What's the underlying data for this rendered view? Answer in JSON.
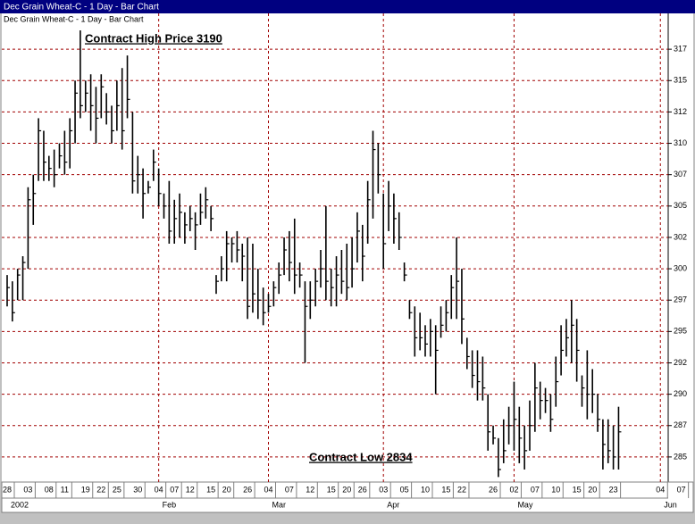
{
  "window_title": "Dec Grain Wheat-C - 1 Day - Bar Chart",
  "chart_data": {
    "type": "hlc",
    "title": "Dec Grain Wheat-C - 1 Day - Bar Chart",
    "annotations": [
      "Contract High Price 3190",
      "Contract Low 2834"
    ],
    "color": "#000000",
    "grid": true,
    "ylim": [
      2830,
      3200
    ],
    "yticks": [
      {
        "value": 3175,
        "label": "317"
      },
      {
        "value": 3150,
        "label": "315"
      },
      {
        "value": 3125,
        "label": "312"
      },
      {
        "value": 3100,
        "label": "310"
      },
      {
        "value": 3075,
        "label": "307"
      },
      {
        "value": 3050,
        "label": "305"
      },
      {
        "value": 3025,
        "label": "302"
      },
      {
        "value": 3000,
        "label": "300"
      },
      {
        "value": 2975,
        "label": "297"
      },
      {
        "value": 2950,
        "label": "295"
      },
      {
        "value": 2925,
        "label": "292"
      },
      {
        "value": 2900,
        "label": "290"
      },
      {
        "value": 2875,
        "label": "287"
      },
      {
        "value": 2850,
        "label": "285"
      }
    ],
    "categories": [
      "28",
      null,
      null,
      null,
      "03",
      null,
      null,
      null,
      "08",
      null,
      null,
      "11",
      null,
      null,
      null,
      "19",
      null,
      null,
      "22",
      null,
      null,
      "25",
      null,
      null,
      null,
      "30",
      null,
      null,
      null,
      "04",
      null,
      null,
      "07",
      null,
      null,
      "12",
      null,
      null,
      null,
      "15",
      null,
      null,
      "20",
      null,
      null,
      null,
      "26",
      null,
      null,
      null,
      "04",
      null,
      null,
      null,
      "07",
      null,
      null,
      null,
      "12",
      null,
      null,
      null,
      "15",
      null,
      null,
      "20",
      null,
      null,
      "26",
      null,
      null,
      null,
      "03",
      null,
      null,
      null,
      "05",
      null,
      null,
      null,
      "10",
      null,
      null,
      null,
      "15",
      null,
      null,
      "22",
      null,
      null,
      null,
      null,
      null,
      "26",
      null,
      null,
      null,
      "02",
      null,
      null,
      null,
      "07",
      null,
      null,
      null,
      "10",
      null,
      null,
      null,
      "15",
      null,
      null,
      "20",
      null,
      null,
      null,
      "23",
      null,
      null,
      null,
      null,
      null,
      null,
      null,
      null,
      "04",
      null,
      null,
      null,
      "07"
    ],
    "months": [
      "2002",
      null,
      null,
      null,
      null,
      null,
      null,
      null,
      null,
      null,
      null,
      null,
      null,
      null,
      null,
      null,
      null,
      null,
      null,
      null,
      null,
      null,
      null,
      null,
      null,
      null,
      null,
      null,
      null,
      "Feb",
      null,
      null,
      null,
      null,
      null,
      null,
      null,
      null,
      null,
      null,
      null,
      null,
      null,
      null,
      null,
      null,
      null,
      null,
      null,
      null,
      "Mar",
      null,
      null,
      null,
      null,
      null,
      null,
      null,
      null,
      null,
      null,
      null,
      null,
      null,
      null,
      null,
      null,
      null,
      null,
      null,
      null,
      null,
      "Apr",
      null,
      null,
      null,
      null,
      null,
      null,
      null,
      null,
      null,
      null,
      null,
      null,
      null,
      null,
      null,
      null,
      null,
      null,
      null,
      null,
      null,
      null,
      null,
      null,
      "May",
      null,
      null,
      null,
      null,
      null,
      null,
      null,
      null,
      null,
      null,
      null,
      null,
      null,
      null,
      null,
      null,
      null,
      null,
      null,
      null,
      null,
      null,
      null,
      null,
      null,
      null,
      null,
      "Jun",
      null,
      null,
      null,
      null
    ],
    "high": [
      2995,
      2990,
      3000,
      3010,
      3065,
      3075,
      3120,
      3110,
      3090,
      3095,
      3100,
      3110,
      3120,
      3150,
      3190,
      3150,
      3155,
      3145,
      3155,
      3140,
      3130,
      3150,
      3160,
      3170,
      3125,
      3090,
      3080,
      3070,
      3095,
      3080,
      3060,
      3070,
      3055,
      3060,
      3045,
      3050,
      3045,
      3060,
      3065,
      3050,
      2995,
      3010,
      3030,
      3025,
      3030,
      3020,
      3025,
      3020,
      3000,
      2985,
      2980,
      2990,
      3005,
      3025,
      3030,
      3040,
      3005,
      2990,
      2990,
      3000,
      3015,
      3050,
      3000,
      3010,
      3015,
      3020,
      3025,
      3045,
      3035,
      3070,
      3110,
      3100,
      3060,
      3070,
      3060,
      3045,
      3005,
      2975,
      2970,
      2965,
      2955,
      2960,
      2955,
      2970,
      2975,
      2995,
      3025,
      3000,
      2945,
      2935,
      2935,
      2930,
      2900,
      2875,
      2865,
      2880,
      2890,
      2910,
      2890,
      2875,
      2895,
      2925,
      2910,
      2905,
      2900,
      2930,
      2955,
      2960,
      2975,
      2960,
      2915,
      2935,
      2920,
      2900,
      2880,
      2880,
      2875,
      2890,
      null,
      null,
      null,
      null,
      null,
      null,
      null,
      null,
      null,
      null,
      null,
      null
    ],
    "low": [
      2970,
      2958,
      2975,
      2975,
      3000,
      3035,
      3070,
      3070,
      3070,
      3065,
      3080,
      3075,
      3080,
      3100,
      3120,
      3125,
      3110,
      3100,
      3120,
      3115,
      3100,
      3110,
      3095,
      3120,
      3060,
      3060,
      3040,
      3060,
      3070,
      3050,
      3040,
      3020,
      3020,
      3025,
      3020,
      3030,
      3015,
      3035,
      3040,
      3030,
      2980,
      2990,
      2990,
      3005,
      3005,
      2990,
      2960,
      2965,
      2960,
      2955,
      2965,
      2970,
      2980,
      2995,
      2990,
      2980,
      2985,
      2925,
      2960,
      2970,
      2985,
      2975,
      2970,
      2970,
      2980,
      2975,
      2985,
      3005,
      2990,
      3020,
      3040,
      3060,
      3000,
      3030,
      3020,
      3015,
      2990,
      2960,
      2930,
      2935,
      2930,
      2930,
      2900,
      2945,
      2950,
      2960,
      2960,
      2940,
      2920,
      2905,
      2895,
      2895,
      2855,
      2860,
      2834,
      2845,
      2860,
      2855,
      2845,
      2840,
      2855,
      2870,
      2880,
      2885,
      2870,
      2890,
      2915,
      2930,
      2925,
      2910,
      2890,
      2880,
      2885,
      2870,
      2840,
      2845,
      2840,
      2840,
      null,
      null,
      null,
      null,
      null,
      null,
      null,
      null,
      null,
      null,
      null,
      null
    ],
    "close": [
      2985,
      2965,
      2995,
      3005,
      3055,
      3060,
      3110,
      3085,
      3080,
      3075,
      3090,
      3085,
      3110,
      3140,
      3130,
      3140,
      3130,
      3120,
      3145,
      3125,
      3110,
      3130,
      3110,
      3135,
      3070,
      3075,
      3060,
      3065,
      3085,
      3060,
      3050,
      3030,
      3040,
      3045,
      3035,
      3040,
      3035,
      3045,
      3055,
      3040,
      2990,
      3000,
      3020,
      3020,
      3015,
      3010,
      2970,
      2980,
      2975,
      2965,
      2970,
      2985,
      2995,
      3015,
      3005,
      2995,
      2995,
      2970,
      2975,
      2990,
      3000,
      2990,
      2985,
      2995,
      2990,
      2985,
      3000,
      3030,
      3010,
      3055,
      3095,
      3075,
      3020,
      3050,
      3040,
      3025,
      2995,
      2965,
      2945,
      2945,
      2940,
      2950,
      2935,
      2955,
      2965,
      2985,
      2990,
      2960,
      2930,
      2915,
      2910,
      2905,
      2870,
      2865,
      2840,
      2855,
      2875,
      2880,
      2865,
      2855,
      2875,
      2905,
      2895,
      2895,
      2880,
      2910,
      2935,
      2945,
      2955,
      2935,
      2905,
      2900,
      2900,
      2880,
      2860,
      2855,
      2850,
      2870,
      null,
      null,
      null,
      null,
      null,
      null,
      null,
      null,
      null,
      null,
      null,
      null
    ]
  }
}
